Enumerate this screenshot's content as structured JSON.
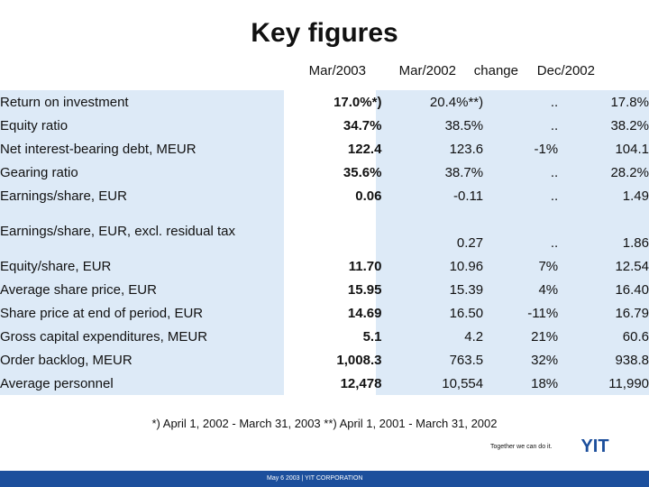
{
  "title": "Key figures",
  "columns": [
    "Mar/2003",
    "Mar/2002",
    "change",
    "Dec/2002"
  ],
  "rows": [
    {
      "label": "Return on investment",
      "values": [
        "17.0%*)",
        "20.4%**)",
        "..",
        "17.8%"
      ]
    },
    {
      "label": "Equity ratio",
      "values": [
        "34.7%",
        "38.5%",
        "..",
        "38.2%"
      ]
    },
    {
      "label": "Net interest-bearing debt, MEUR",
      "values": [
        "122.4",
        "123.6",
        "-1%",
        "104.1"
      ]
    },
    {
      "label": "Gearing ratio",
      "values": [
        "35.6%",
        "38.7%",
        "..",
        "28.2%"
      ]
    },
    {
      "label": "Earnings/share, EUR",
      "values": [
        "0.06",
        "-0.11",
        "..",
        "1.49"
      ]
    },
    {
      "label": "Earnings/share, EUR, excl. residual tax",
      "values": [
        "",
        "0.27",
        "..",
        "1.86"
      ]
    },
    {
      "label": "Equity/share, EUR",
      "values": [
        "11.70",
        "10.96",
        "7%",
        "12.54"
      ]
    },
    {
      "label": "Average share price, EUR",
      "values": [
        "15.95",
        "15.39",
        "4%",
        "16.40"
      ]
    },
    {
      "label": "Share price at end of period, EUR",
      "values": [
        "14.69",
        "16.50",
        "-11%",
        "16.79"
      ]
    },
    {
      "label": "Gross capital expenditures, MEUR",
      "values": [
        "5.1",
        "4.2",
        "21%",
        "60.6"
      ]
    },
    {
      "label": "Order backlog, MEUR",
      "values": [
        "1,008.3",
        "763.5",
        "32%",
        "938.8"
      ]
    },
    {
      "label": "Average personnel",
      "values": [
        "12,478",
        "10,554",
        "18%",
        "11,990"
      ]
    }
  ],
  "footnote": "*) April 1, 2002 - March 31, 2003  **) April 1, 2001 - March 31, 2002",
  "tagline": "Together we can do it.",
  "logo_text": "YIT",
  "footer": "May 6 2003   |   YIT CORPORATION",
  "colors": {
    "band": "#ddeaf7",
    "brand": "#1c4f9c"
  }
}
